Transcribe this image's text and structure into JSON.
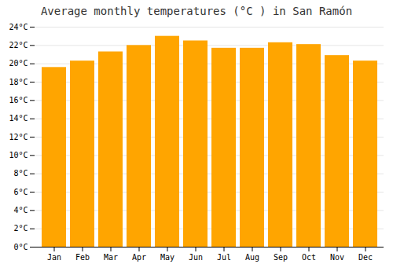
{
  "chart_data": {
    "type": "bar",
    "title": "Average monthly temperatures (°C ) in San Ramón",
    "categories": [
      "Jan",
      "Feb",
      "Mar",
      "Apr",
      "May",
      "Jun",
      "Jul",
      "Aug",
      "Sep",
      "Oct",
      "Nov",
      "Dec"
    ],
    "values": [
      19.6,
      20.3,
      21.3,
      22.0,
      23.0,
      22.5,
      21.7,
      21.7,
      22.3,
      22.1,
      20.9,
      20.3
    ],
    "color": "#FFA500",
    "ylim": [
      0,
      24
    ],
    "yticks": [
      {
        "value": 0,
        "label": "0°C"
      },
      {
        "value": 2,
        "label": "2°C"
      },
      {
        "value": 4,
        "label": "4°C"
      },
      {
        "value": 6,
        "label": "6°C"
      },
      {
        "value": 8,
        "label": "8°C"
      },
      {
        "value": 10,
        "label": "10°C"
      },
      {
        "value": 12,
        "label": "12°C"
      },
      {
        "value": 14,
        "label": "14°C"
      },
      {
        "value": 16,
        "label": "16°C"
      },
      {
        "value": 18,
        "label": "18°C"
      },
      {
        "value": 20,
        "label": "20°C"
      },
      {
        "value": 22,
        "label": "22°C"
      },
      {
        "value": 24,
        "label": "24°C"
      }
    ],
    "grid": true
  }
}
